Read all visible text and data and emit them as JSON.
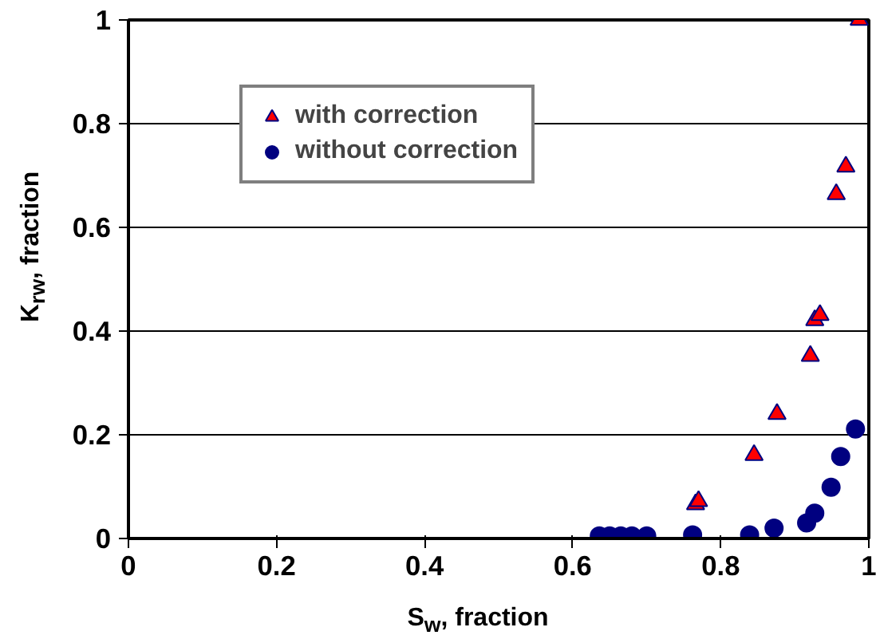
{
  "chart_data": {
    "type": "scatter",
    "xlabel": "S$_{w}$, fraction",
    "ylabel": "K$_{rw}$, fraction",
    "xlim": [
      0,
      1
    ],
    "xticks": [
      0,
      0.2,
      0.4,
      0.6,
      0.8,
      1
    ],
    "ylim": [
      0,
      1
    ],
    "yticks": [
      0,
      0.2,
      0.4,
      0.6,
      0.8,
      1
    ],
    "grid": "y",
    "legend": "top",
    "series": [
      {
        "name": "with correction",
        "color": "#ff0000",
        "marker": "triangle",
        "x": [
          0.766,
          0.77,
          0.845,
          0.876,
          0.921,
          0.927,
          0.934,
          0.956,
          0.969,
          0.987
        ],
        "values": [
          0.066,
          0.072,
          0.161,
          0.24,
          0.352,
          0.421,
          0.431,
          0.664,
          0.717,
          1.0
        ]
      },
      {
        "name": "without correction",
        "color": "#000080",
        "marker": "circle",
        "x": [
          0.636,
          0.65,
          0.665,
          0.68,
          0.7,
          0.762,
          0.839,
          0.872,
          0.916,
          0.927,
          0.949,
          0.962,
          0.982
        ],
        "values": [
          0.005,
          0.005,
          0.005,
          0.005,
          0.005,
          0.007,
          0.007,
          0.02,
          0.03,
          0.049,
          0.099,
          0.158,
          0.211
        ]
      }
    ]
  }
}
